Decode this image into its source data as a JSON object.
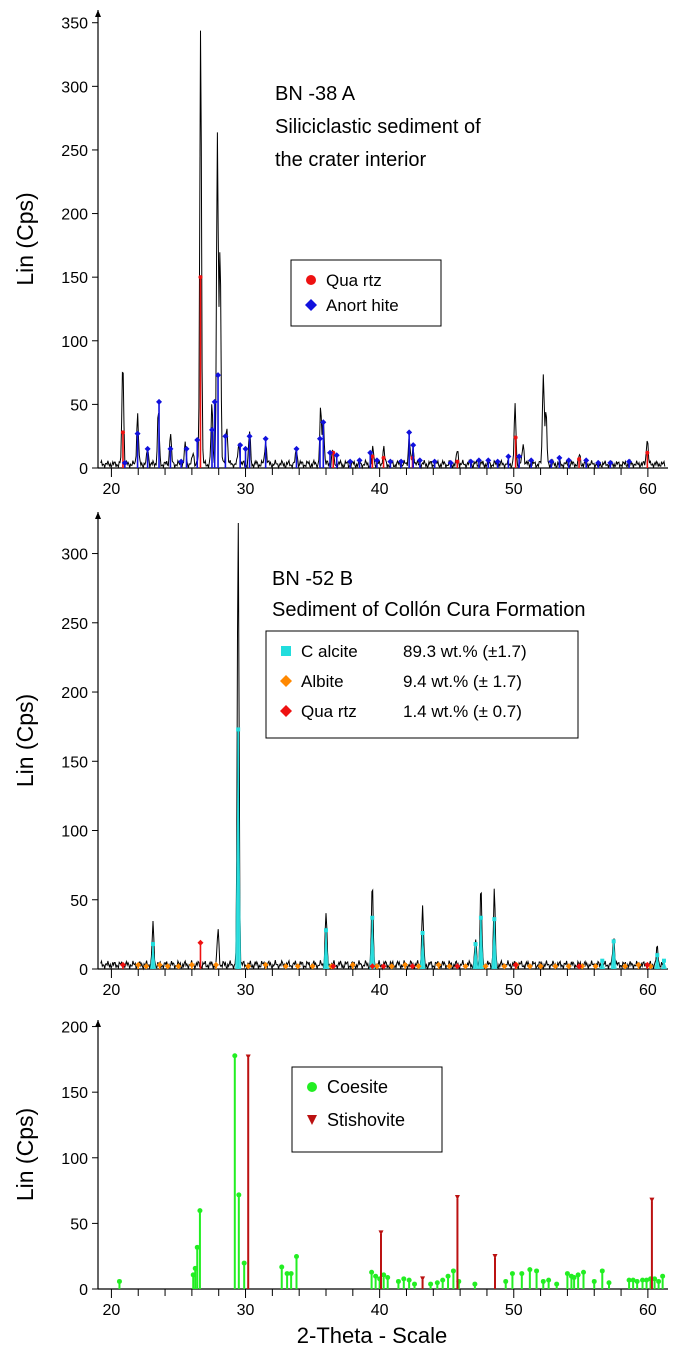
{
  "x_axis_label": "2-Theta - Scale",
  "chart_data": [
    {
      "type": "line",
      "ylabel": "Lin (Cps)",
      "xlabel": "",
      "xlim": [
        19,
        61.5
      ],
      "ylim": [
        0,
        360
      ],
      "x_ticks": [
        20,
        30,
        40,
        50,
        60
      ],
      "y_ticks": [
        0,
        50,
        100,
        150,
        200,
        250,
        300,
        350
      ],
      "annotation": [
        "BN -38 A",
        "Siliciclastic sediment of",
        "the crater interior"
      ],
      "legend": [
        {
          "label": "Qua rtz",
          "color": "#ee1111",
          "marker": "circle"
        },
        {
          "label": "Anort hite",
          "color": "#1111dd",
          "marker": "diamond"
        }
      ],
      "pattern": {
        "color": "#000000",
        "baseline": 3,
        "peaks": [
          [
            20.85,
            85
          ],
          [
            21.95,
            43
          ],
          [
            22.7,
            15
          ],
          [
            23.5,
            45
          ],
          [
            24.4,
            28
          ],
          [
            25.5,
            18
          ],
          [
            26.1,
            12
          ],
          [
            26.65,
            348
          ],
          [
            27.5,
            50
          ],
          [
            27.9,
            262
          ],
          [
            28.1,
            176
          ],
          [
            28.6,
            35
          ],
          [
            29.5,
            20
          ],
          [
            30.3,
            28
          ],
          [
            31.5,
            22
          ],
          [
            33.8,
            15
          ],
          [
            35.6,
            46
          ],
          [
            35.8,
            40
          ],
          [
            36.5,
            14
          ],
          [
            39.5,
            15
          ],
          [
            40.3,
            16
          ],
          [
            42.2,
            24
          ],
          [
            42.5,
            16
          ],
          [
            45.8,
            14
          ],
          [
            50.1,
            49
          ],
          [
            50.7,
            20
          ],
          [
            52.2,
            76
          ],
          [
            52.4,
            44
          ],
          [
            54.9,
            10
          ],
          [
            59.95,
            24
          ]
        ]
      },
      "series": [
        {
          "name": "Quartz",
          "color": "#ee1111",
          "marker": "circle",
          "points": [
            [
              20.86,
              28
            ],
            [
              26.64,
              150
            ],
            [
              36.54,
              12
            ],
            [
              39.46,
              9
            ],
            [
              40.29,
              8
            ],
            [
              42.45,
              8
            ],
            [
              45.79,
              5
            ],
            [
              50.14,
              24
            ],
            [
              54.87,
              7
            ],
            [
              59.96,
              12
            ]
          ]
        },
        {
          "name": "Anorthite",
          "color": "#1111dd",
          "marker": "diamond",
          "points": [
            [
              21.0,
              4
            ],
            [
              21.95,
              27
            ],
            [
              22.7,
              15
            ],
            [
              23.55,
              52
            ],
            [
              24.4,
              15
            ],
            [
              25.2,
              5
            ],
            [
              25.6,
              15
            ],
            [
              26.4,
              22
            ],
            [
              27.5,
              30
            ],
            [
              27.7,
              52
            ],
            [
              27.95,
              73
            ],
            [
              28.5,
              25
            ],
            [
              29.6,
              18
            ],
            [
              30.0,
              15
            ],
            [
              30.3,
              25
            ],
            [
              31.5,
              23
            ],
            [
              33.8,
              15
            ],
            [
              35.55,
              23
            ],
            [
              35.8,
              36
            ],
            [
              36.3,
              12
            ],
            [
              36.8,
              10
            ],
            [
              37.8,
              5
            ],
            [
              38.5,
              6
            ],
            [
              39.3,
              12
            ],
            [
              39.8,
              6
            ],
            [
              40.8,
              5
            ],
            [
              41.6,
              5
            ],
            [
              42.2,
              28
            ],
            [
              42.5,
              18
            ],
            [
              43.0,
              6
            ],
            [
              44.1,
              5
            ],
            [
              45.3,
              4
            ],
            [
              46.8,
              5
            ],
            [
              47.4,
              6
            ],
            [
              48.1,
              6
            ],
            [
              48.8,
              5
            ],
            [
              49.6,
              9
            ],
            [
              50.4,
              9
            ],
            [
              51.3,
              6
            ],
            [
              52.8,
              5
            ],
            [
              53.4,
              8
            ],
            [
              54.1,
              6
            ],
            [
              55.4,
              6
            ],
            [
              56.3,
              4
            ],
            [
              57.2,
              4
            ],
            [
              58.6,
              5
            ]
          ]
        }
      ]
    },
    {
      "type": "line",
      "ylabel": "Lin (Cps)",
      "xlabel": "",
      "xlim": [
        19,
        61.5
      ],
      "ylim": [
        0,
        330
      ],
      "x_ticks": [
        20,
        30,
        40,
        50,
        60
      ],
      "y_ticks": [
        0,
        50,
        100,
        150,
        200,
        250,
        300
      ],
      "annotation": [
        "BN -52 B",
        "Sediment of Collón Cura Formation"
      ],
      "legend": [
        {
          "label": "C alcite",
          "detail": "89.3 wt.% (±1.7)",
          "color": "#22dddd",
          "marker": "square"
        },
        {
          "label": "Albite",
          "detail": "9.4 wt.% (± 1.7)",
          "color": "#ff8800",
          "marker": "diamond"
        },
        {
          "label": "Qua rtz",
          "detail": "1.4 wt.% (± 0.7)",
          "color": "#ee1111",
          "marker": "diamond"
        }
      ],
      "pattern": {
        "color": "#000000",
        "baseline": 3,
        "peaks": [
          [
            23.1,
            32
          ],
          [
            27.95,
            28
          ],
          [
            29.45,
            327
          ],
          [
            36.0,
            41
          ],
          [
            39.45,
            60
          ],
          [
            43.2,
            45
          ],
          [
            47.15,
            20
          ],
          [
            47.55,
            59
          ],
          [
            48.55,
            56
          ],
          [
            57.45,
            24
          ],
          [
            60.7,
            16
          ]
        ]
      },
      "series": [
        {
          "name": "Calcite",
          "color": "#22dddd",
          "marker": "square",
          "fill": true,
          "points": [
            [
              23.1,
              18
            ],
            [
              29.45,
              173
            ],
            [
              36.0,
              28
            ],
            [
              39.45,
              37
            ],
            [
              43.2,
              26
            ],
            [
              47.15,
              18
            ],
            [
              47.55,
              37
            ],
            [
              48.55,
              36
            ],
            [
              56.6,
              6
            ],
            [
              57.45,
              20
            ],
            [
              60.7,
              10
            ],
            [
              61.2,
              6
            ]
          ]
        },
        {
          "name": "Albite",
          "color": "#ff8800",
          "marker": "diamond",
          "points": [
            [
              22.0,
              3
            ],
            [
              22.6,
              2
            ],
            [
              23.6,
              3
            ],
            [
              24.2,
              2
            ],
            [
              25.0,
              2
            ],
            [
              26.0,
              3
            ],
            [
              27.8,
              3
            ],
            [
              30.2,
              2
            ],
            [
              31.5,
              3
            ],
            [
              33.0,
              2
            ],
            [
              33.9,
              2
            ],
            [
              35.0,
              2
            ],
            [
              36.4,
              2
            ],
            [
              38.0,
              3
            ],
            [
              39.8,
              2
            ],
            [
              40.9,
              2
            ],
            [
              41.9,
              3
            ],
            [
              42.9,
              2
            ],
            [
              44.4,
              3
            ],
            [
              45.2,
              2
            ],
            [
              46.4,
              2
            ],
            [
              47.9,
              2
            ],
            [
              49.3,
              2
            ],
            [
              50.2,
              3
            ],
            [
              51.2,
              2
            ],
            [
              52.0,
              2
            ],
            [
              53.1,
              2
            ],
            [
              54.1,
              2
            ],
            [
              55.1,
              2
            ],
            [
              56.1,
              2
            ],
            [
              58.3,
              2
            ],
            [
              59.3,
              3
            ],
            [
              60.2,
              2
            ]
          ]
        },
        {
          "name": "Quartz",
          "color": "#ee1111",
          "marker": "diamond",
          "points": [
            [
              20.86,
              3
            ],
            [
              26.64,
              19
            ],
            [
              36.54,
              2
            ],
            [
              39.46,
              2
            ],
            [
              40.29,
              2
            ],
            [
              42.45,
              2
            ],
            [
              45.79,
              2
            ],
            [
              50.14,
              3
            ],
            [
              54.87,
              2
            ],
            [
              59.96,
              3
            ]
          ]
        }
      ]
    },
    {
      "type": "bar",
      "ylabel": "Lin (Cps)",
      "xlabel": "2-Theta - Scale",
      "xlim": [
        19,
        61.5
      ],
      "ylim": [
        0,
        205
      ],
      "x_ticks": [
        20,
        30,
        40,
        50,
        60
      ],
      "y_ticks": [
        0,
        50,
        100,
        150,
        200
      ],
      "legend": [
        {
          "label": "Coesite",
          "color": "#22ee22",
          "marker": "circle"
        },
        {
          "label": "Stishovite",
          "color": "#bb1111",
          "marker": "triangle-down"
        }
      ],
      "series": [
        {
          "name": "Coesite",
          "color": "#22ee22",
          "marker": "circle",
          "sticks": [
            [
              20.6,
              5
            ],
            [
              26.1,
              10
            ],
            [
              26.25,
              15
            ],
            [
              26.4,
              31
            ],
            [
              26.6,
              59
            ],
            [
              29.2,
              177
            ],
            [
              29.5,
              71
            ],
            [
              29.9,
              19
            ],
            [
              32.7,
              16
            ],
            [
              33.1,
              11
            ],
            [
              33.4,
              11
            ],
            [
              33.8,
              24
            ],
            [
              39.4,
              12
            ],
            [
              39.7,
              9
            ],
            [
              40.0,
              7
            ],
            [
              40.3,
              10
            ],
            [
              40.6,
              8
            ],
            [
              41.4,
              5
            ],
            [
              41.8,
              7
            ],
            [
              42.2,
              6
            ],
            [
              42.6,
              3
            ],
            [
              43.8,
              3
            ],
            [
              44.3,
              4
            ],
            [
              44.7,
              6
            ],
            [
              45.1,
              9
            ],
            [
              45.5,
              13
            ],
            [
              45.9,
              5
            ],
            [
              47.1,
              3
            ],
            [
              49.4,
              5
            ],
            [
              49.9,
              11
            ],
            [
              50.6,
              11
            ],
            [
              51.2,
              14
            ],
            [
              51.7,
              13
            ],
            [
              52.2,
              5
            ],
            [
              52.6,
              6
            ],
            [
              53.2,
              3
            ],
            [
              54.0,
              11
            ],
            [
              54.3,
              9
            ],
            [
              54.5,
              8
            ],
            [
              54.8,
              10
            ],
            [
              55.2,
              12
            ],
            [
              56.0,
              5
            ],
            [
              56.6,
              13
            ],
            [
              57.1,
              4
            ],
            [
              58.6,
              6
            ],
            [
              58.9,
              6
            ],
            [
              59.2,
              5
            ],
            [
              59.6,
              6
            ],
            [
              59.9,
              6
            ],
            [
              60.2,
              7
            ],
            [
              60.5,
              7
            ],
            [
              60.8,
              5
            ],
            [
              61.1,
              9
            ]
          ]
        },
        {
          "name": "Stishovite",
          "color": "#bb1111",
          "marker": "triangle-down",
          "sticks": [
            [
              30.2,
              176
            ],
            [
              40.1,
              42
            ],
            [
              43.2,
              7
            ],
            [
              45.8,
              69
            ],
            [
              48.6,
              24
            ],
            [
              60.3,
              67
            ]
          ]
        }
      ]
    }
  ]
}
